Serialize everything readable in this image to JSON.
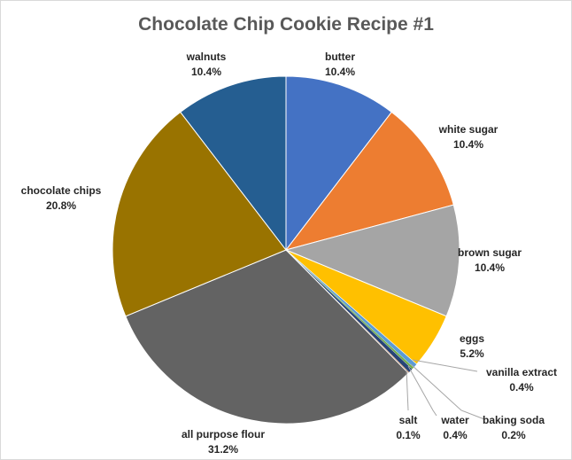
{
  "chart_data": {
    "type": "pie",
    "title": "Chocolate Chip Cookie Recipe #1",
    "slices": [
      {
        "label": "butter",
        "percent_label": "10.4%",
        "value": 10.4,
        "color": "#4472c4"
      },
      {
        "label": "white sugar",
        "percent_label": "10.4%",
        "value": 10.4,
        "color": "#ed7d31"
      },
      {
        "label": "brown sugar",
        "percent_label": "10.4%",
        "value": 10.4,
        "color": "#a5a5a5"
      },
      {
        "label": "eggs",
        "percent_label": "5.2%",
        "value": 5.2,
        "color": "#ffc000"
      },
      {
        "label": "vanilla extract",
        "percent_label": "0.4%",
        "value": 0.4,
        "color": "#5b9bd5"
      },
      {
        "label": "baking soda",
        "percent_label": "0.2%",
        "value": 0.2,
        "color": "#70ad47"
      },
      {
        "label": "water",
        "percent_label": "0.4%",
        "value": 0.4,
        "color": "#264478"
      },
      {
        "label": "salt",
        "percent_label": "0.1%",
        "value": 0.1,
        "color": "#9e480e"
      },
      {
        "label": "all purpose flour",
        "percent_label": "31.2%",
        "value": 31.2,
        "color": "#636363"
      },
      {
        "label": "chocolate chips",
        "percent_label": "20.8%",
        "value": 20.8,
        "color": "#997300"
      },
      {
        "label": "walnuts",
        "percent_label": "10.4%",
        "value": 10.4,
        "color": "#255e91"
      }
    ]
  }
}
